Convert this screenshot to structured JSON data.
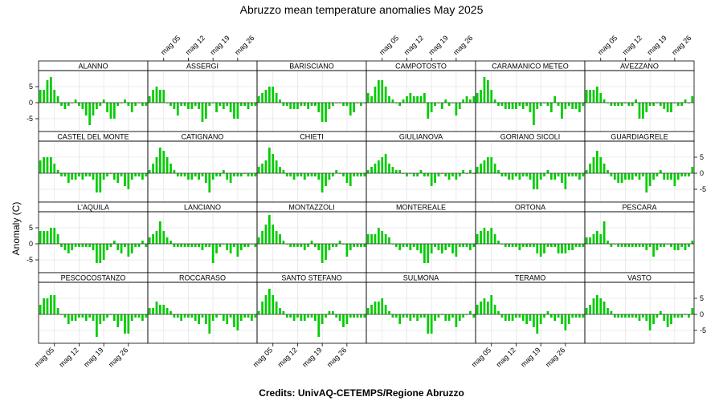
{
  "title": "Abruzzo mean temperature anomalies May 2025",
  "credits": "Credits: UnivAQ-CETEMPS/Regione Abruzzo",
  "colors": {
    "bar": "#00cc00",
    "zero_line": "#333333",
    "grid": "#e6e6e6",
    "frame": "#000000"
  },
  "chart_data": {
    "type": "bar",
    "layout": "trellis 6 columns x 4 rows",
    "ylabel": "Anomaly (C)",
    "ylim": [
      -9,
      10
    ],
    "y_ticks": [
      -5,
      0,
      5
    ],
    "x_ticks": [
      {
        "day": 5,
        "label": "mag 05"
      },
      {
        "day": 12,
        "label": "mag 12"
      },
      {
        "day": 19,
        "label": "mag 19"
      },
      {
        "day": 26,
        "label": "mag 26"
      }
    ],
    "days": [
      1,
      2,
      3,
      4,
      5,
      6,
      7,
      8,
      9,
      10,
      11,
      12,
      13,
      14,
      15,
      16,
      17,
      18,
      19,
      20,
      21,
      22,
      23,
      24,
      25,
      26,
      27,
      28,
      29,
      30,
      31
    ],
    "series": [
      {
        "name": "ALANNO",
        "values": [
          4,
          4,
          7,
          8,
          4,
          2,
          -1,
          -2,
          -1,
          0,
          1,
          -1,
          -2,
          -4,
          -7,
          -4,
          -2,
          -1,
          1,
          -3,
          -5,
          -5,
          -1,
          0,
          1,
          -1,
          -3,
          -1,
          0,
          -1,
          -1
        ]
      },
      {
        "name": "ASSERGI",
        "values": [
          2,
          4,
          5,
          4,
          4,
          0,
          -1,
          -2,
          -4,
          -1,
          -1,
          -2,
          -2,
          -1,
          -2,
          -6,
          -5,
          -1,
          0,
          -3,
          -1,
          -2,
          -1,
          -3,
          -5,
          -5,
          -1,
          -1,
          -2,
          -1,
          -1
        ]
      },
      {
        "name": "BARISCIANO",
        "values": [
          2,
          3,
          4,
          5,
          5,
          3,
          1,
          -1,
          -1,
          -2,
          -2,
          -2,
          -1,
          -1,
          -2,
          -1,
          -1,
          -3,
          -6,
          -6,
          -2,
          -1,
          0,
          0,
          -1,
          -1,
          -4,
          -3,
          0,
          -1,
          0
        ]
      },
      {
        "name": "CAMPOTOSTO",
        "values": [
          3,
          2,
          5,
          7,
          7,
          5,
          2,
          1,
          0,
          -1,
          1,
          2,
          3,
          2,
          2,
          2,
          3,
          -5,
          -3,
          -1,
          0,
          -2,
          1,
          -1,
          0,
          -4,
          -2,
          1,
          2,
          1,
          2
        ]
      },
      {
        "name": "CARAMANICO METEO",
        "values": [
          3,
          4,
          8,
          7,
          4,
          1,
          -1,
          -1,
          -2,
          -2,
          -2,
          -2,
          -1,
          -2,
          -1,
          -3,
          -7,
          -2,
          -1,
          0,
          -1,
          -3,
          2,
          -1,
          -5,
          -2,
          -1,
          -2,
          -2,
          -3,
          -1
        ]
      },
      {
        "name": "AVEZZANO",
        "values": [
          4,
          4,
          4,
          5,
          3,
          1,
          0,
          -1,
          -1,
          -1,
          -1,
          0,
          -1,
          -1,
          1,
          -5,
          -5,
          -3,
          -1,
          -1,
          0,
          -1,
          -2,
          -3,
          -3,
          0,
          -1,
          -1,
          1,
          0,
          2
        ]
      },
      {
        "name": "CASTEL DEL MONTE",
        "values": [
          4,
          5,
          5,
          5,
          3,
          1,
          -1,
          -1,
          -3,
          -2,
          -2,
          -1,
          -2,
          -1,
          -1,
          -2,
          -6,
          -6,
          -2,
          -1,
          0,
          -2,
          -3,
          -1,
          -4,
          -5,
          -2,
          -1,
          -1,
          -2,
          -1
        ]
      },
      {
        "name": "CATIGNANO",
        "values": [
          1,
          3,
          5,
          8,
          7,
          5,
          3,
          1,
          -1,
          -1,
          -1,
          -2,
          -2,
          -1,
          -2,
          -1,
          -3,
          -6,
          -2,
          -1,
          -1,
          1,
          -2,
          -3,
          -1,
          -1,
          -1,
          0,
          -1,
          -1,
          -1
        ]
      },
      {
        "name": "CHIETI",
        "values": [
          2,
          3,
          4,
          8,
          6,
          4,
          2,
          1,
          -1,
          -1,
          -2,
          -1,
          -1,
          -2,
          -1,
          -1,
          -1,
          -2,
          -6,
          -4,
          -2,
          -1,
          1,
          0,
          -1,
          -3,
          -4,
          -1,
          -1,
          -1,
          -1
        ]
      },
      {
        "name": "GIULIANOVA",
        "values": [
          1,
          2,
          3,
          4,
          5,
          6,
          3,
          2,
          1,
          1,
          0,
          -1,
          0,
          -1,
          -1,
          1,
          -1,
          -1,
          -4,
          -3,
          -1,
          0,
          -1,
          -2,
          -1,
          -2,
          -1,
          1,
          0,
          1,
          0
        ]
      },
      {
        "name": "GORIANO SICOLI",
        "values": [
          2,
          3,
          4,
          5,
          5,
          3,
          1,
          -1,
          -1,
          -2,
          -2,
          -1,
          -2,
          -1,
          -1,
          -2,
          -5,
          -5,
          -2,
          -1,
          1,
          -2,
          -2,
          -1,
          -3,
          -5,
          -1,
          -1,
          -1,
          -2,
          -1
        ]
      },
      {
        "name": "GUARDIAGRELE",
        "values": [
          1,
          3,
          5,
          7,
          5,
          3,
          1,
          -1,
          -2,
          -3,
          -3,
          -2,
          -2,
          -2,
          -1,
          -2,
          -1,
          -6,
          -4,
          -2,
          -1,
          1,
          -2,
          -2,
          -2,
          -4,
          -2,
          -1,
          -1,
          -1,
          2
        ]
      },
      {
        "name": "L'AQUILA",
        "values": [
          4,
          4,
          4,
          5,
          5,
          3,
          -1,
          -2,
          -3,
          -2,
          -1,
          -1,
          -1,
          -1,
          -1,
          -2,
          -6,
          -6,
          -5,
          -2,
          -1,
          1,
          -2,
          -3,
          -1,
          -4,
          -3,
          -1,
          -1,
          1,
          -1
        ]
      },
      {
        "name": "LANCIANO",
        "values": [
          2,
          3,
          4,
          7,
          4,
          2,
          1,
          -1,
          -1,
          -1,
          -1,
          -1,
          -1,
          -1,
          -1,
          -2,
          -1,
          -1,
          -6,
          -3,
          -1,
          0,
          -2,
          -3,
          -1,
          -4,
          -2,
          -1,
          -1,
          0,
          -1
        ]
      },
      {
        "name": "MONTAZZOLI",
        "values": [
          2,
          4,
          6,
          9,
          6,
          4,
          3,
          1,
          0,
          -1,
          -1,
          -1,
          -1,
          -2,
          -1,
          1,
          -1,
          -2,
          -6,
          -5,
          -2,
          -1,
          -1,
          1,
          0,
          -4,
          -2,
          -1,
          -1,
          -1,
          -1
        ]
      },
      {
        "name": "MONTEREALE",
        "values": [
          3,
          3,
          3,
          5,
          4,
          3,
          2,
          0,
          -1,
          -2,
          -1,
          -1,
          -2,
          -1,
          -2,
          -3,
          -6,
          -6,
          -3,
          -1,
          -2,
          -3,
          -2,
          -1,
          -3,
          -4,
          -1,
          -1,
          -1,
          -2,
          -1
        ]
      },
      {
        "name": "ORTONA",
        "values": [
          3,
          4,
          5,
          4,
          5,
          3,
          1,
          0,
          -1,
          -1,
          -1,
          -1,
          -2,
          -1,
          -1,
          -1,
          -1,
          -3,
          -4,
          -3,
          -1,
          -1,
          -1,
          -3,
          -3,
          -3,
          -2,
          -2,
          -1,
          -1,
          -1
        ]
      },
      {
        "name": "PESCARA",
        "values": [
          2,
          2,
          3,
          4,
          3,
          7,
          1,
          -1,
          0,
          -1,
          -1,
          -1,
          -1,
          -1,
          -1,
          -1,
          -1,
          -2,
          -1,
          -4,
          -2,
          -1,
          -1,
          0,
          -1,
          -2,
          -2,
          -1,
          -2,
          -1,
          1
        ]
      },
      {
        "name": "PESCOCOSTANZO",
        "values": [
          3,
          5,
          5,
          6,
          6,
          2,
          0,
          -1,
          -3,
          -2,
          -2,
          -1,
          -1,
          -2,
          -1,
          -2,
          -7,
          -3,
          -2,
          -1,
          0,
          -2,
          -4,
          -2,
          -6,
          -6,
          -2,
          -1,
          -1,
          -2,
          -1
        ]
      },
      {
        "name": "ROCCARASO",
        "values": [
          2,
          2,
          4,
          3,
          3,
          2,
          1,
          -1,
          -1,
          -2,
          -1,
          -1,
          -1,
          -2,
          -3,
          -1,
          -3,
          -6,
          -2,
          -1,
          0,
          -2,
          -3,
          -1,
          -4,
          -5,
          -2,
          -1,
          -1,
          -2,
          -1
        ]
      },
      {
        "name": "SANTO STEFANO",
        "values": [
          1,
          4,
          6,
          8,
          6,
          4,
          2,
          1,
          -1,
          -1,
          -2,
          -1,
          -2,
          -2,
          -1,
          -1,
          -2,
          -7,
          -3,
          -1,
          1,
          1,
          -1,
          -2,
          -4,
          -3,
          -1,
          -1,
          -1,
          -1,
          -1
        ]
      },
      {
        "name": "SULMONA",
        "values": [
          2,
          3,
          4,
          4,
          5,
          3,
          1,
          -1,
          -1,
          -3,
          -1,
          -1,
          -2,
          -1,
          -2,
          -1,
          -1,
          -6,
          -6,
          -2,
          -1,
          0,
          -2,
          -2,
          -1,
          -4,
          -2,
          -1,
          0,
          1,
          -1
        ]
      },
      {
        "name": "TERAMO",
        "values": [
          3,
          4,
          5,
          4,
          6,
          3,
          1,
          -1,
          -2,
          -2,
          -2,
          -1,
          -1,
          -2,
          -3,
          -2,
          -4,
          -6,
          -3,
          -1,
          1,
          -1,
          -2,
          -1,
          -3,
          -5,
          -3,
          -1,
          -1,
          -1,
          -1
        ]
      },
      {
        "name": "VASTO",
        "values": [
          2,
          3,
          5,
          6,
          5,
          4,
          2,
          1,
          -1,
          -1,
          -1,
          -1,
          -1,
          -1,
          -1,
          -2,
          -1,
          -2,
          -5,
          -3,
          -1,
          1,
          -2,
          -4,
          -3,
          -1,
          -1,
          -1,
          0,
          -1,
          2
        ]
      }
    ]
  }
}
